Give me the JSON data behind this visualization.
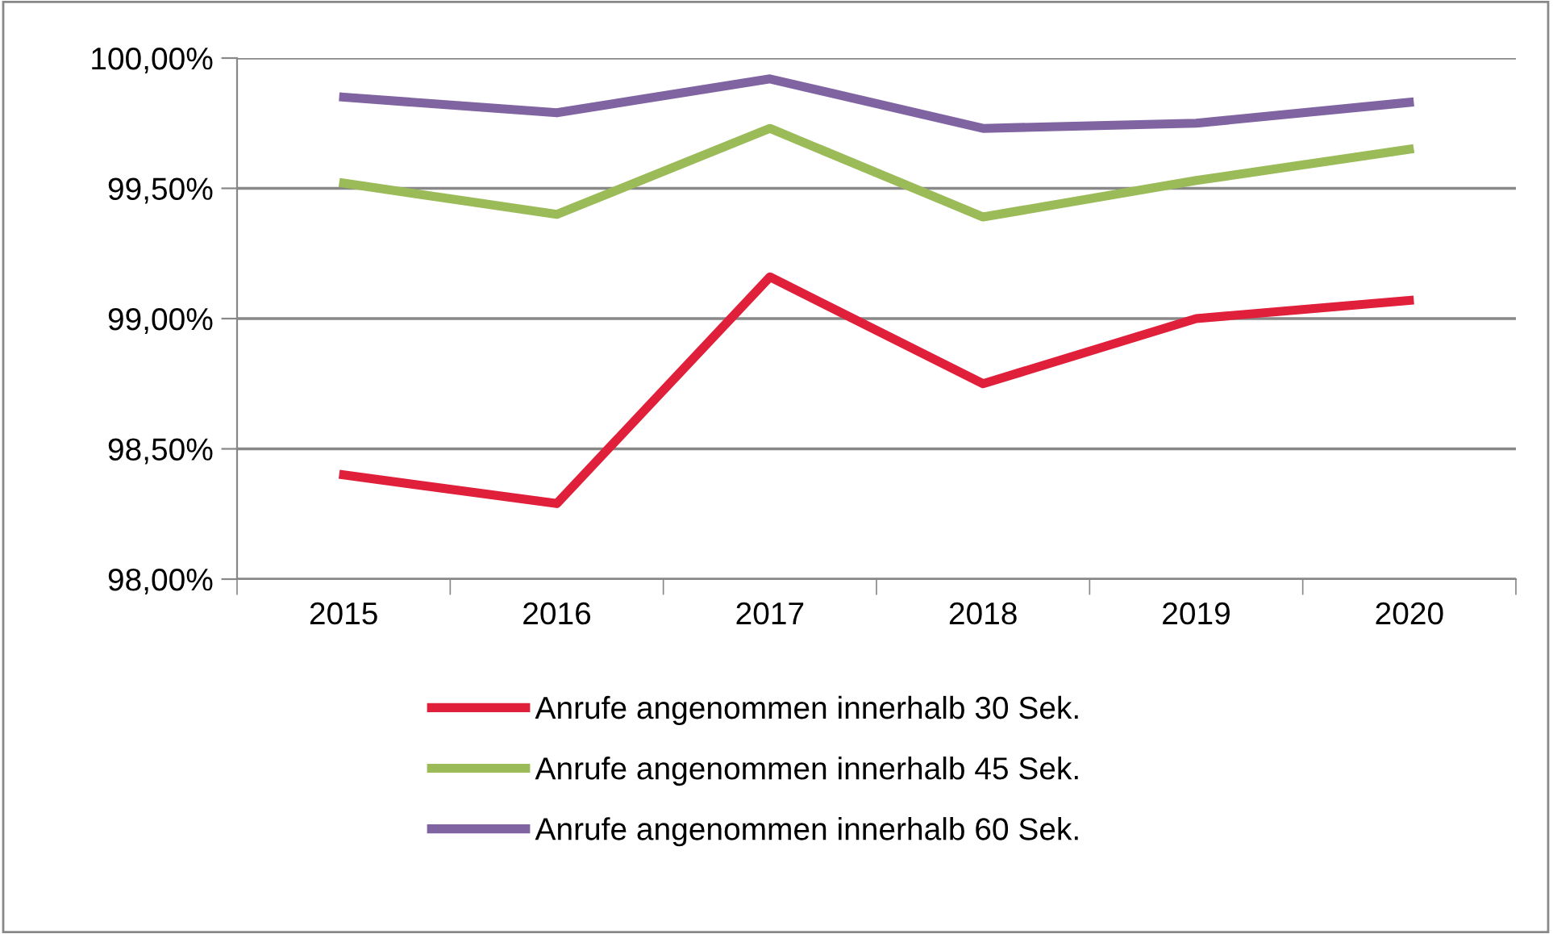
{
  "chart_data": {
    "type": "line",
    "categories": [
      "2015",
      "2016",
      "2017",
      "2018",
      "2019",
      "2020"
    ],
    "series": [
      {
        "name": "Anrufe angenommen innerhalb 30 Sek.",
        "color": "#e0203a",
        "values": [
          98.4,
          98.29,
          99.16,
          98.75,
          99.0,
          99.07
        ]
      },
      {
        "name": "Anrufe angenommen innerhalb 45 Sek.",
        "color": "#9bbb59",
        "values": [
          99.52,
          99.4,
          99.73,
          99.39,
          99.53,
          99.65
        ]
      },
      {
        "name": "Anrufe angenommen innerhalb 60 Sek.",
        "color": "#8064a2",
        "values": [
          99.85,
          99.79,
          99.92,
          99.73,
          99.75,
          99.83
        ]
      }
    ],
    "ylim": [
      98,
      100
    ],
    "yticks": [
      {
        "value": 98,
        "label": "98,00%"
      },
      {
        "value": 98.5,
        "label": "98,50%"
      },
      {
        "value": 99,
        "label": "99,00%"
      },
      {
        "value": 99.5,
        "label": "99,50%"
      },
      {
        "value": 100,
        "label": "100,00%"
      }
    ],
    "grid": "y",
    "legend": "bottom",
    "marker": "none",
    "line_style": "solid"
  }
}
